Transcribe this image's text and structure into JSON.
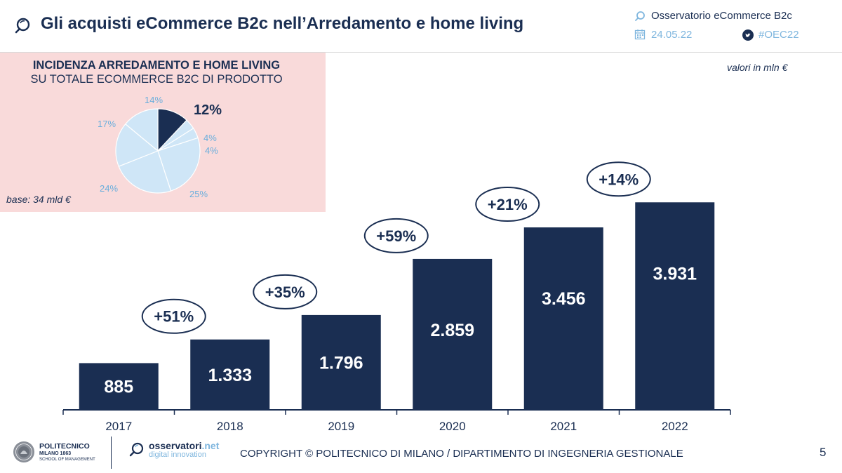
{
  "header": {
    "title": "Gli acquisti eCommerce B2c nell’Arredamento e home living",
    "observatory": "Osservatorio eCommerce B2c",
    "date": "24.05.22",
    "hashtag": "#OEC22",
    "icons": [
      "search-icon",
      "calendar-icon",
      "twitter-icon"
    ]
  },
  "pie_panel": {
    "title_line1": "INCIDENZA ARREDAMENTO E HOME LIVING",
    "title_line2": "SU TOTALE ECOMMERCE B2C DI PRODOTTO",
    "base_note": "base: 34 mld €"
  },
  "units_note": "valori in mln €",
  "chart_data": [
    {
      "type": "pie",
      "title": "INCIDENZA ARREDAMENTO E HOME LIVING SU TOTALE ECOMMERCE B2C DI PRODOTTO",
      "slices": [
        {
          "label": "12%",
          "value": 12,
          "highlight": true
        },
        {
          "label": "4%",
          "value": 4,
          "highlight": false
        },
        {
          "label": "4%",
          "value": 4,
          "highlight": false
        },
        {
          "label": "25%",
          "value": 25,
          "highlight": false
        },
        {
          "label": "24%",
          "value": 24,
          "highlight": false
        },
        {
          "label": "17%",
          "value": 17,
          "highlight": false
        },
        {
          "label": "14%",
          "value": 14,
          "highlight": false
        }
      ],
      "colors": {
        "highlight": "#1a2e52",
        "other": "#cfe6f7",
        "label_other": "#6aaedc"
      }
    },
    {
      "type": "bar",
      "title": "Gli acquisti eCommerce B2c nell’Arredamento e home living",
      "ylabel": "valori in mln €",
      "categories": [
        "2017",
        "2018",
        "2019",
        "2020",
        "2021",
        "2022"
      ],
      "values": [
        885,
        1333,
        1796,
        2859,
        3456,
        3931
      ],
      "value_labels": [
        "885",
        "1.333",
        "1.796",
        "2.859",
        "3.456",
        "3.931"
      ],
      "growth_labels": [
        "+51%",
        "+35%",
        "+59%",
        "+21%",
        "+14%"
      ],
      "ylim": [
        0,
        4000
      ],
      "colors": {
        "bar": "#1a2e52",
        "axis": "#1a2e52",
        "value_text": "#ffffff"
      }
    }
  ],
  "footer": {
    "polimi_name": "POLITECNICO",
    "polimi_sub1": "MILANO 1863",
    "polimi_sub2": "SCHOOL OF MANAGEMENT",
    "obs_name": "osservatori",
    "obs_name_suffix": ".net",
    "obs_sub": "digital innovation",
    "copyright": "COPYRIGHT © POLITECNICO DI MILANO / DIPARTIMENTO DI INGEGNERIA GESTIONALE",
    "page_number": "5"
  }
}
